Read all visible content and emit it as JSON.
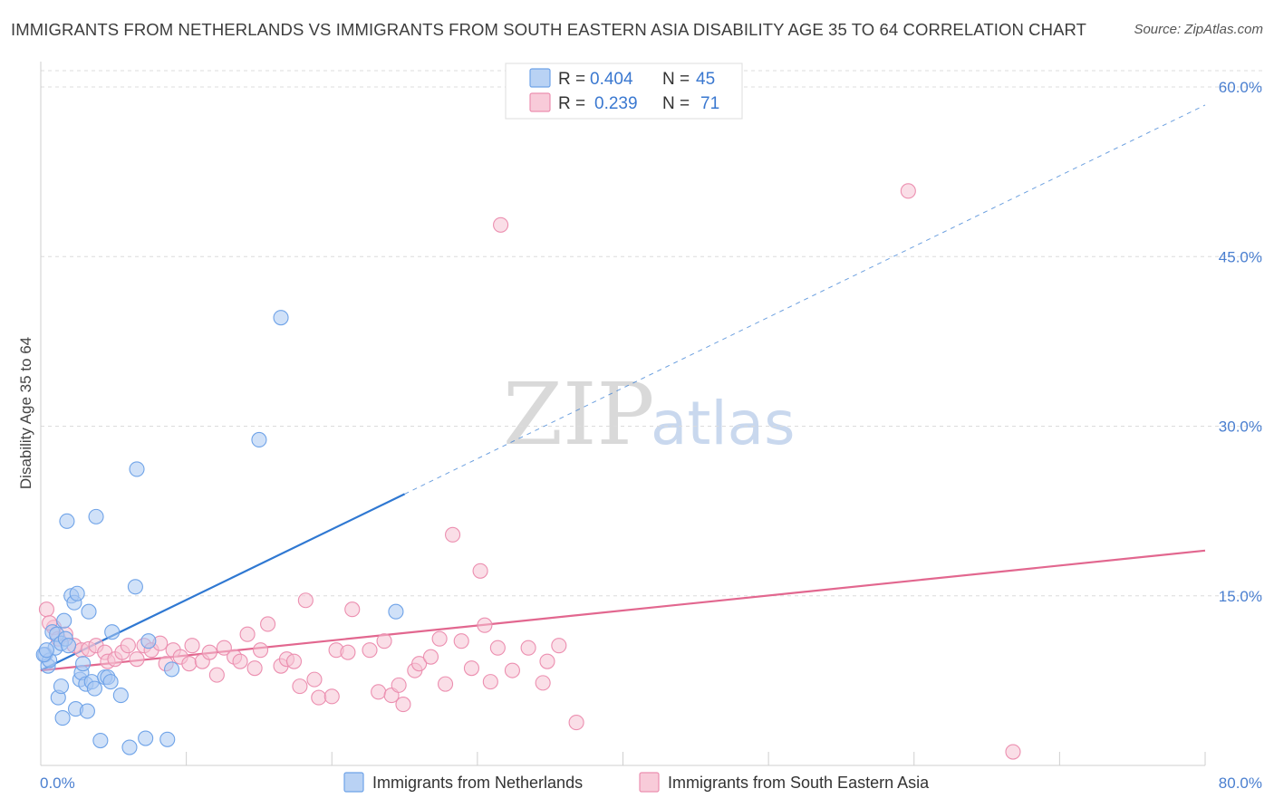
{
  "title": "IMMIGRANTS FROM NETHERLANDS VS IMMIGRANTS FROM SOUTH EASTERN ASIA DISABILITY AGE 35 TO 64 CORRELATION CHART",
  "source": "Source: ZipAtlas.com",
  "watermark": {
    "zip": "ZIP",
    "atlas": "atlas"
  },
  "legend": {
    "r_label": "R =",
    "n_label": "N =",
    "netherlands": {
      "r": "0.404",
      "n": "45"
    },
    "sea": {
      "r": "0.239",
      "n": "71"
    }
  },
  "chart_data": {
    "type": "scatter",
    "title": "IMMIGRANTS FROM NETHERLANDS VS IMMIGRANTS FROM SOUTH EASTERN ASIA DISABILITY AGE 35 TO 64 CORRELATION CHART",
    "xlabel": "",
    "ylabel": "Disability Age 35 to 64",
    "xlim": [
      0,
      80
    ],
    "ylim": [
      0,
      60
    ],
    "x_ticks": [
      {
        "v": 0,
        "label": "0.0%"
      },
      {
        "v": 80,
        "label": "80.0%"
      }
    ],
    "y_ticks": [
      {
        "v": 15,
        "label": "15.0%"
      },
      {
        "v": 30,
        "label": "30.0%"
      },
      {
        "v": 45,
        "label": "45.0%"
      },
      {
        "v": 60,
        "label": "60.0%"
      }
    ],
    "series": [
      {
        "name": "Immigrants from Netherlands",
        "color": "#6fa3e8",
        "fill": "#a9c8f2",
        "line_color": "#2f78d2",
        "trend": {
          "x0": 0,
          "y0": 8.4,
          "x1": 25,
          "y1": 24.0,
          "dash_x1": 80,
          "dash_y1": 58.4
        },
        "points": [
          [
            0.3,
            9.8
          ],
          [
            0.5,
            8.8
          ],
          [
            0.6,
            9.3
          ],
          [
            0.8,
            11.8
          ],
          [
            1.0,
            10.4
          ],
          [
            1.1,
            11.6
          ],
          [
            1.2,
            6.0
          ],
          [
            1.4,
            10.8
          ],
          [
            1.4,
            7.0
          ],
          [
            1.5,
            4.2
          ],
          [
            1.6,
            12.8
          ],
          [
            1.7,
            11.2
          ],
          [
            1.8,
            21.6
          ],
          [
            1.9,
            10.6
          ],
          [
            2.1,
            15.0
          ],
          [
            2.3,
            14.4
          ],
          [
            2.4,
            5.0
          ],
          [
            2.5,
            15.2
          ],
          [
            2.7,
            7.6
          ],
          [
            2.8,
            8.2
          ],
          [
            2.9,
            9.0
          ],
          [
            3.1,
            7.2
          ],
          [
            3.2,
            4.8
          ],
          [
            3.3,
            13.6
          ],
          [
            3.5,
            7.4
          ],
          [
            3.7,
            6.8
          ],
          [
            3.8,
            22.0
          ],
          [
            4.1,
            2.2
          ],
          [
            4.4,
            7.8
          ],
          [
            4.6,
            7.8
          ],
          [
            4.8,
            7.4
          ],
          [
            4.9,
            11.8
          ],
          [
            5.5,
            6.2
          ],
          [
            6.1,
            1.6
          ],
          [
            6.5,
            15.8
          ],
          [
            6.6,
            26.2
          ],
          [
            7.2,
            2.4
          ],
          [
            7.4,
            11.0
          ],
          [
            8.7,
            2.3
          ],
          [
            9.0,
            8.5
          ],
          [
            15.0,
            28.8
          ],
          [
            16.5,
            39.6
          ],
          [
            24.4,
            13.6
          ],
          [
            0.2,
            9.8
          ],
          [
            0.4,
            10.2
          ]
        ]
      },
      {
        "name": "Immigrants from South Eastern Asia",
        "color": "#ec8fb0",
        "fill": "#f6c3d4",
        "line_color": "#e2678f",
        "trend": {
          "x0": 0,
          "y0": 8.4,
          "x1": 80,
          "y1": 19.0
        },
        "points": [
          [
            0.4,
            13.8
          ],
          [
            0.9,
            12.2
          ],
          [
            1.2,
            11.2
          ],
          [
            1.7,
            11.6
          ],
          [
            2.3,
            10.6
          ],
          [
            2.8,
            10.2
          ],
          [
            3.3,
            10.3
          ],
          [
            3.8,
            10.6
          ],
          [
            4.4,
            10.0
          ],
          [
            4.6,
            9.2
          ],
          [
            5.1,
            9.4
          ],
          [
            5.6,
            10.0
          ],
          [
            6.0,
            10.6
          ],
          [
            6.6,
            9.4
          ],
          [
            7.1,
            10.6
          ],
          [
            7.6,
            10.2
          ],
          [
            8.2,
            10.8
          ],
          [
            8.6,
            9.0
          ],
          [
            9.1,
            10.2
          ],
          [
            9.6,
            9.6
          ],
          [
            10.2,
            9.0
          ],
          [
            10.4,
            10.6
          ],
          [
            11.1,
            9.2
          ],
          [
            11.6,
            10.0
          ],
          [
            12.1,
            8.0
          ],
          [
            12.6,
            10.4
          ],
          [
            13.3,
            9.6
          ],
          [
            13.7,
            9.2
          ],
          [
            14.2,
            11.6
          ],
          [
            14.7,
            8.6
          ],
          [
            15.1,
            10.2
          ],
          [
            15.6,
            12.5
          ],
          [
            16.5,
            8.8
          ],
          [
            16.9,
            9.4
          ],
          [
            17.4,
            9.2
          ],
          [
            17.8,
            7.0
          ],
          [
            18.2,
            14.6
          ],
          [
            18.8,
            7.6
          ],
          [
            19.1,
            6.0
          ],
          [
            20.0,
            6.1
          ],
          [
            20.3,
            10.2
          ],
          [
            21.1,
            10.0
          ],
          [
            21.4,
            13.8
          ],
          [
            22.6,
            10.2
          ],
          [
            23.2,
            6.5
          ],
          [
            23.6,
            11.0
          ],
          [
            24.1,
            6.2
          ],
          [
            24.6,
            7.1
          ],
          [
            24.9,
            5.4
          ],
          [
            25.7,
            8.4
          ],
          [
            26.0,
            9.0
          ],
          [
            26.8,
            9.6
          ],
          [
            27.4,
            11.2
          ],
          [
            27.8,
            7.2
          ],
          [
            28.3,
            20.4
          ],
          [
            28.9,
            11.0
          ],
          [
            29.6,
            8.6
          ],
          [
            30.2,
            17.2
          ],
          [
            30.5,
            12.4
          ],
          [
            30.9,
            7.4
          ],
          [
            31.4,
            10.4
          ],
          [
            31.6,
            47.8
          ],
          [
            32.4,
            8.4
          ],
          [
            33.5,
            10.4
          ],
          [
            34.5,
            7.3
          ],
          [
            34.8,
            9.2
          ],
          [
            35.6,
            10.6
          ],
          [
            36.8,
            3.8
          ],
          [
            59.6,
            50.8
          ],
          [
            66.8,
            1.2
          ],
          [
            0.6,
            12.6
          ]
        ]
      }
    ]
  }
}
